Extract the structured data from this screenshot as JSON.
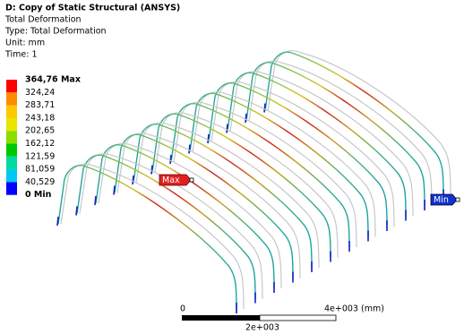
{
  "header": {
    "title": "D: Copy of Static Structural (ANSYS)",
    "lines": [
      "Total Deformation",
      "Type: Total Deformation",
      "Unit: mm",
      "Time: 1"
    ]
  },
  "legend": {
    "labels": [
      "364,76 Max",
      "324,24",
      "283,71",
      "243,18",
      "202,65",
      "162,12",
      "121,59",
      "81,059",
      "40,529",
      "0 Min"
    ]
  },
  "probes": {
    "max": "Max",
    "min": "Min"
  },
  "scale_bar": {
    "start": "0",
    "end": "4e+003 (mm)",
    "middle": "2e+003"
  }
}
